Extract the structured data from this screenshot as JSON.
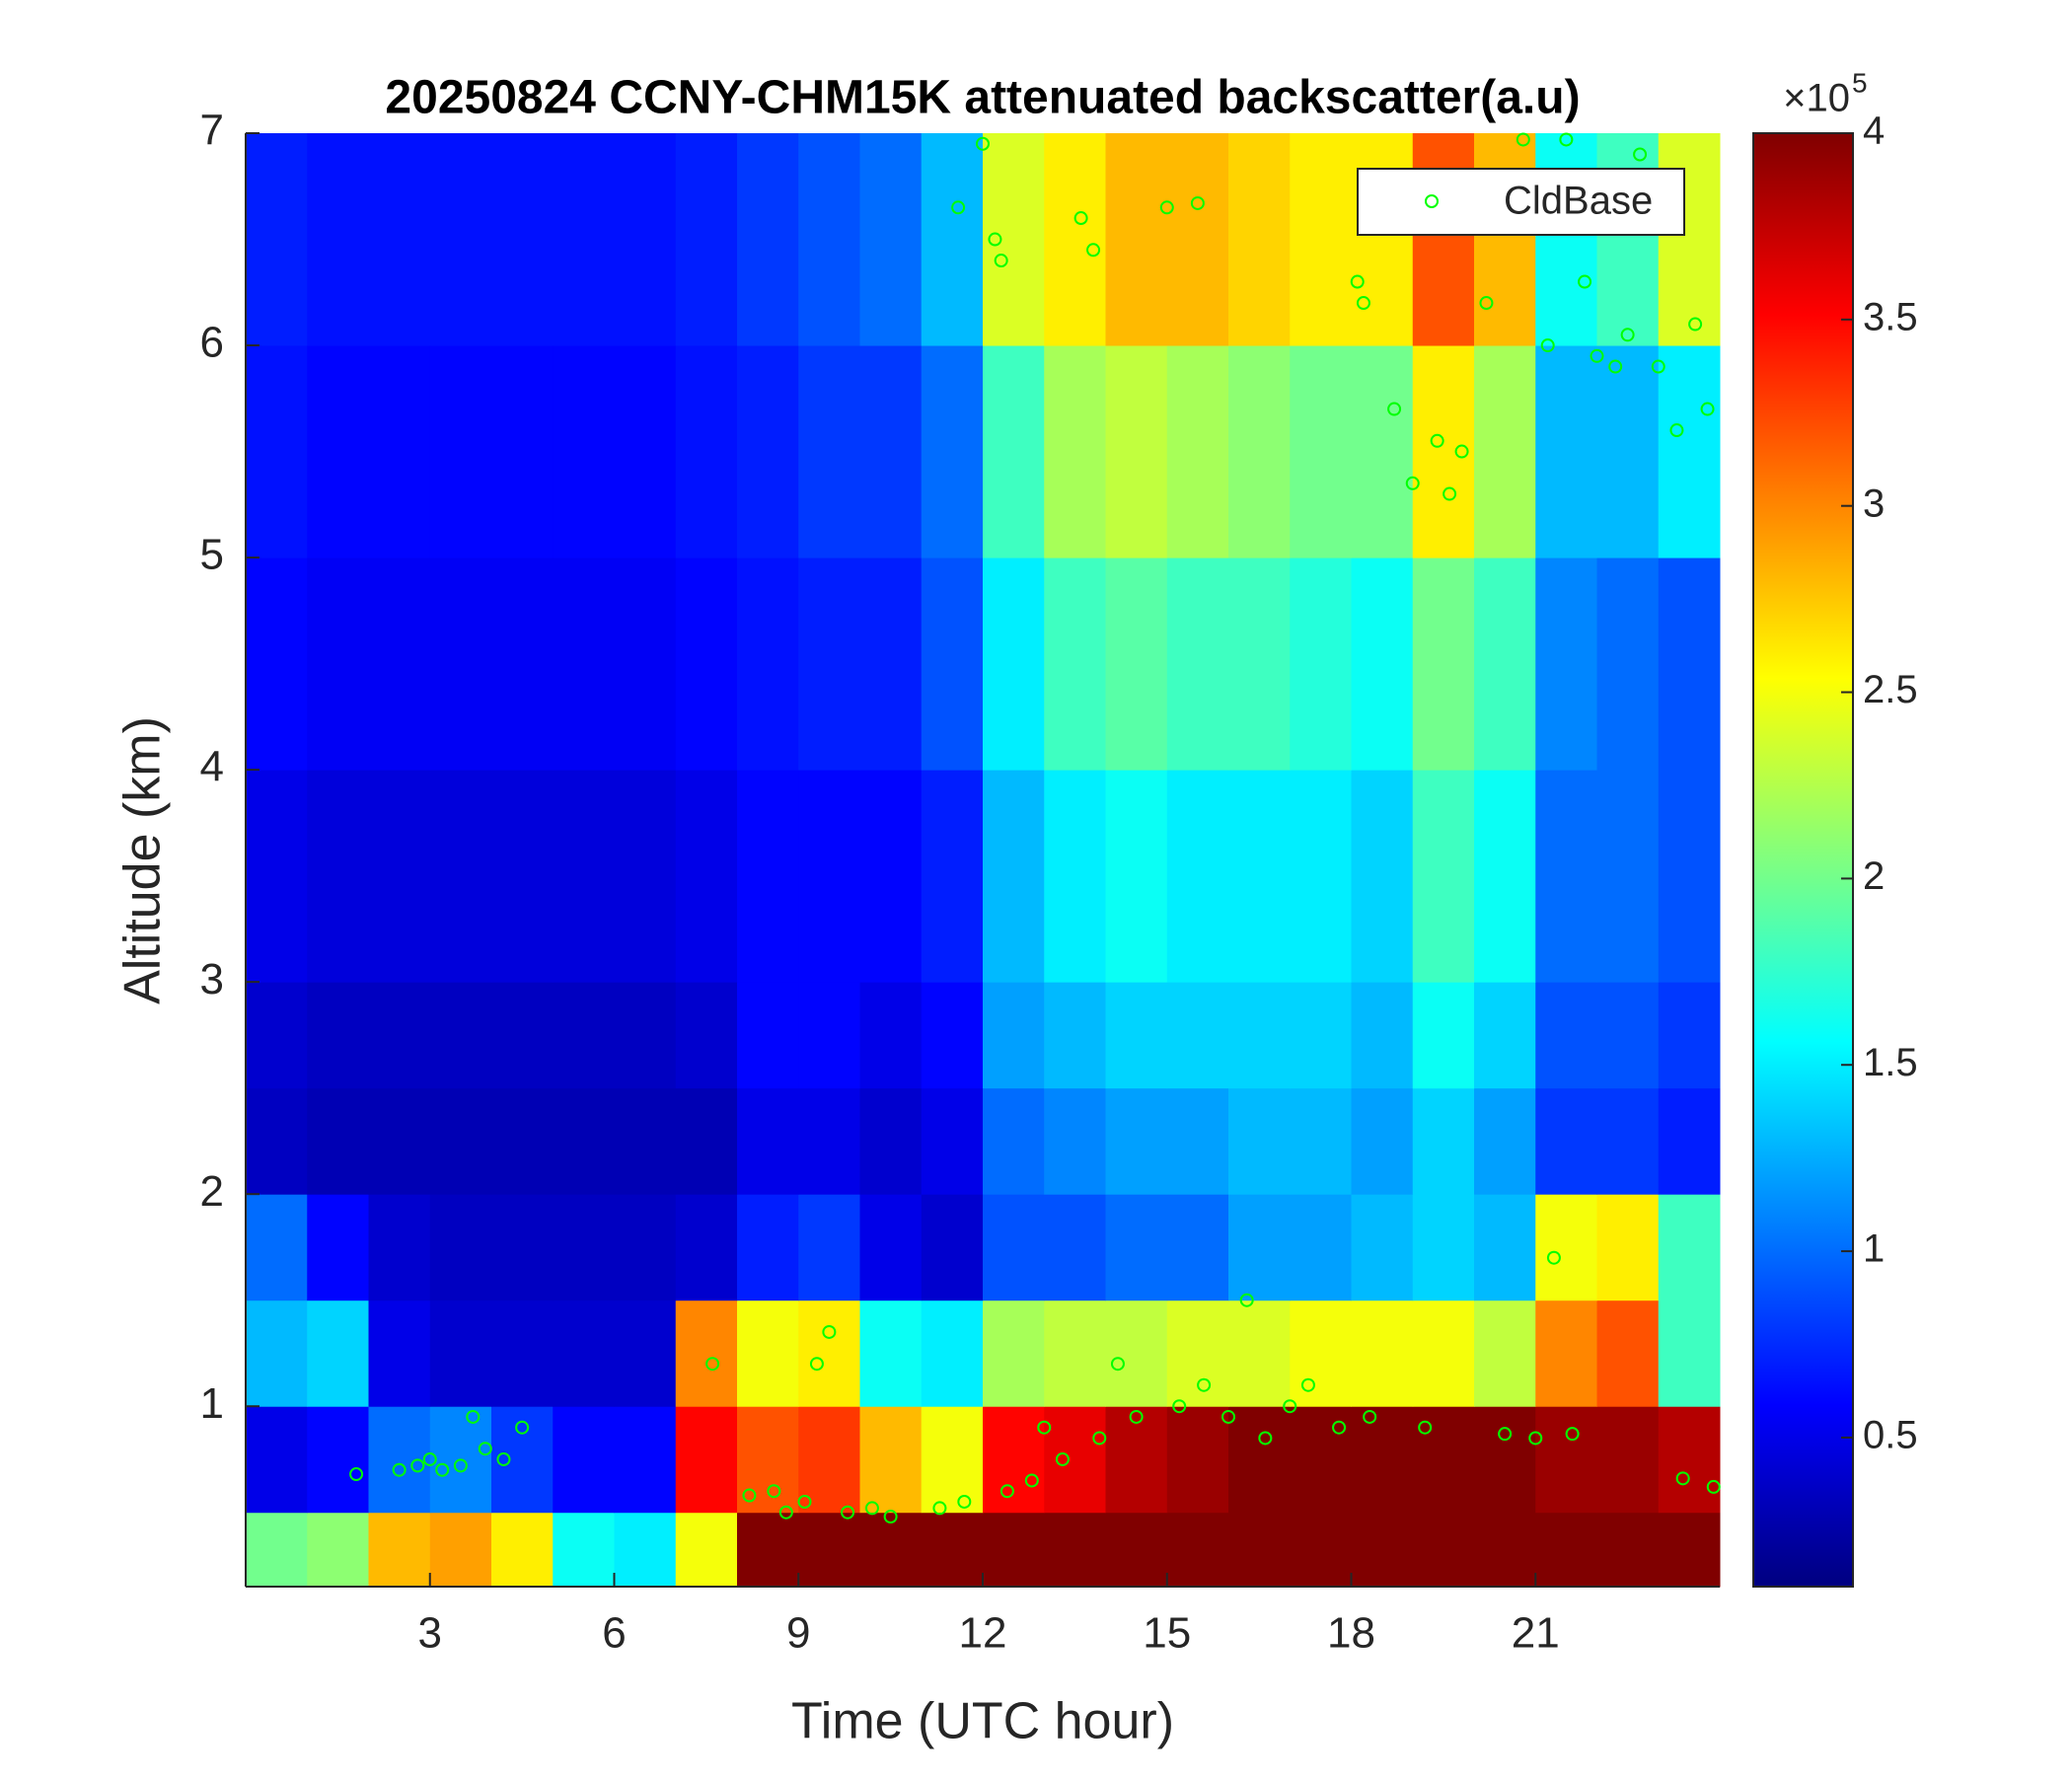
{
  "chart_data": {
    "type": "heatmap",
    "title": "20250824 CCNY-CHM15K attenuated backscatter(a.u)",
    "x_label": "Time (UTC hour)",
    "y_label": "Altitude (km)",
    "xlim": [
      0,
      24
    ],
    "ylim": [
      0.15,
      7
    ],
    "xticks": [
      3,
      6,
      9,
      12,
      15,
      18,
      21
    ],
    "yticks": [
      1,
      2,
      3,
      4,
      5,
      6,
      7
    ],
    "colormap": "jet",
    "clim": [
      0.1,
      4
    ],
    "cticks": [
      0.5,
      1,
      1.5,
      2,
      2.5,
      3,
      3.5,
      4
    ],
    "colorbar_multiplier_base": "×10",
    "colorbar_multiplier_exponent": "5",
    "xbins": [
      0,
      1,
      2,
      3,
      4,
      5,
      6,
      7,
      8,
      9,
      10,
      11,
      12,
      13,
      14,
      15,
      16,
      17,
      18,
      19,
      20,
      21,
      22,
      23,
      24
    ],
    "ybins": [
      0.15,
      0.5,
      1,
      1.5,
      2,
      2.5,
      3,
      4,
      5,
      6,
      7
    ],
    "z": [
      [
        2.0,
        2.1,
        2.8,
        2.9,
        2.6,
        1.6,
        1.5,
        2.5,
        4,
        4,
        4,
        4,
        4,
        4,
        4,
        4,
        4,
        4,
        4,
        4,
        4,
        4,
        4,
        4
      ],
      [
        0.5,
        0.6,
        1.0,
        1.1,
        0.8,
        0.6,
        0.6,
        3.5,
        3.2,
        3.3,
        2.8,
        2.5,
        3.5,
        3.6,
        3.8,
        3.9,
        4,
        4,
        4,
        4,
        4,
        3.9,
        3.9,
        3.8
      ],
      [
        1.3,
        1.4,
        0.5,
        0.4,
        0.4,
        0.4,
        0.4,
        3.0,
        2.5,
        2.6,
        1.6,
        1.5,
        2.2,
        2.3,
        2.3,
        2.4,
        2.4,
        2.5,
        2.5,
        2.5,
        2.3,
        3.0,
        3.2,
        1.8
      ],
      [
        1.0,
        0.6,
        0.4,
        0.35,
        0.35,
        0.35,
        0.35,
        0.4,
        0.7,
        0.8,
        0.5,
        0.4,
        0.9,
        0.9,
        1.0,
        1.0,
        1.2,
        1.2,
        1.3,
        1.4,
        1.3,
        2.5,
        2.6,
        1.8
      ],
      [
        0.35,
        0.3,
        0.3,
        0.3,
        0.3,
        0.3,
        0.3,
        0.3,
        0.5,
        0.5,
        0.4,
        0.5,
        1.0,
        1.1,
        1.2,
        1.2,
        1.3,
        1.3,
        1.2,
        1.4,
        1.2,
        0.8,
        0.8,
        0.7
      ],
      [
        0.4,
        0.35,
        0.35,
        0.35,
        0.35,
        0.35,
        0.35,
        0.4,
        0.6,
        0.6,
        0.5,
        0.6,
        1.2,
        1.3,
        1.4,
        1.4,
        1.4,
        1.4,
        1.3,
        1.6,
        1.4,
        0.9,
        0.9,
        0.8
      ],
      [
        0.5,
        0.45,
        0.45,
        0.45,
        0.45,
        0.45,
        0.45,
        0.5,
        0.6,
        0.6,
        0.6,
        0.7,
        1.3,
        1.5,
        1.6,
        1.5,
        1.5,
        1.5,
        1.4,
        1.8,
        1.6,
        1.0,
        1.0,
        0.9
      ],
      [
        0.6,
        0.55,
        0.55,
        0.55,
        0.55,
        0.55,
        0.55,
        0.6,
        0.65,
        0.7,
        0.7,
        0.9,
        1.5,
        1.8,
        1.9,
        1.8,
        1.8,
        1.7,
        1.6,
        2.0,
        1.8,
        1.1,
        1.0,
        0.9
      ],
      [
        0.65,
        0.6,
        0.6,
        0.6,
        0.6,
        0.6,
        0.6,
        0.65,
        0.7,
        0.8,
        0.8,
        1.0,
        1.8,
        2.2,
        2.3,
        2.2,
        2.1,
        2.0,
        2.0,
        2.6,
        2.2,
        1.3,
        1.3,
        1.5
      ],
      [
        0.7,
        0.65,
        0.65,
        0.65,
        0.65,
        0.65,
        0.65,
        0.7,
        0.8,
        0.9,
        1.0,
        1.3,
        2.4,
        2.6,
        2.8,
        2.8,
        2.7,
        2.6,
        2.6,
        3.2,
        2.8,
        1.6,
        1.8,
        2.4
      ]
    ],
    "series": [
      {
        "name": "CldBase",
        "type": "scatter",
        "color": "#00ff00",
        "x": [
          1.8,
          2.5,
          2.8,
          3.0,
          3.2,
          3.5,
          3.7,
          3.9,
          4.2,
          4.5,
          7.6,
          8.2,
          8.6,
          8.8,
          9.1,
          9.3,
          9.5,
          9.8,
          10.2,
          10.5,
          11.3,
          11.7,
          12.0,
          11.6,
          12.2,
          12.3,
          12.4,
          12.8,
          13.0,
          13.3,
          13.6,
          13.8,
          13.9,
          14.2,
          14.5,
          15.0,
          15.2,
          15.5,
          15.6,
          16.0,
          16.3,
          16.6,
          17.0,
          17.3,
          17.8,
          18.1,
          18.2,
          18.3,
          18.7,
          19.0,
          19.2,
          19.4,
          19.6,
          19.8,
          20.2,
          20.5,
          21.0,
          21.2,
          21.3,
          21.6,
          21.8,
          22.0,
          22.3,
          22.5,
          22.7,
          23.0,
          23.3,
          23.6,
          23.8,
          23.9,
          23.4,
          20.8,
          21.5
        ],
        "values": [
          0.68,
          0.7,
          0.72,
          0.75,
          0.7,
          0.72,
          0.95,
          0.8,
          0.75,
          0.9,
          1.2,
          0.58,
          0.6,
          0.5,
          0.55,
          1.2,
          1.35,
          0.5,
          0.52,
          0.48,
          0.52,
          0.55,
          6.95,
          6.65,
          6.5,
          6.4,
          0.6,
          0.65,
          0.9,
          0.75,
          6.6,
          6.45,
          0.85,
          1.2,
          0.95,
          6.65,
          1.0,
          6.67,
          1.1,
          0.95,
          1.5,
          0.85,
          1.0,
          1.1,
          0.9,
          6.3,
          6.2,
          0.95,
          5.7,
          5.35,
          0.9,
          5.55,
          5.3,
          5.5,
          6.2,
          0.87,
          0.85,
          6.0,
          1.7,
          0.87,
          6.3,
          5.95,
          5.9,
          6.05,
          6.9,
          5.9,
          5.6,
          6.1,
          5.7,
          0.62,
          0.66,
          6.97,
          6.97
        ]
      }
    ],
    "legend": "northeast"
  }
}
